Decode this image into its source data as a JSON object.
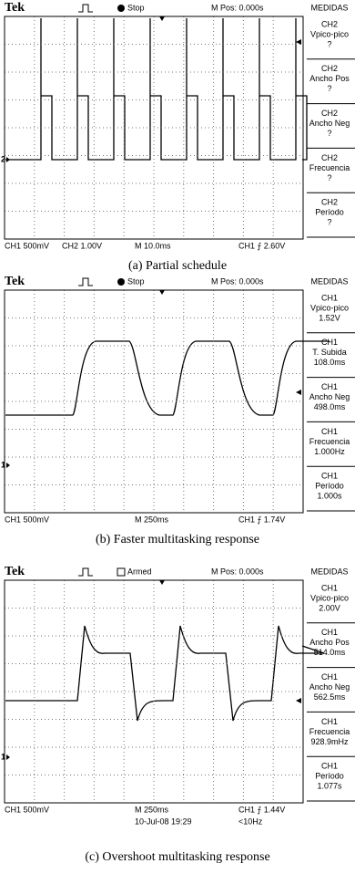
{
  "panels": [
    {
      "header": {
        "brand": "Tek",
        "status": "Stop",
        "position": "M Pos: 0.000s",
        "menu": "MEDIDAS"
      },
      "channel_marker": "2",
      "measurements": [
        {
          "channel": "CH2",
          "name": "Vpico-pico",
          "value": "?"
        },
        {
          "channel": "CH2",
          "name": "Ancho Pos",
          "value": "?"
        },
        {
          "channel": "CH2",
          "name": "Ancho Neg",
          "value": "?"
        },
        {
          "channel": "CH2",
          "name": "Frecuencia",
          "value": "?"
        },
        {
          "channel": "CH2",
          "name": "Período",
          "value": "?"
        }
      ],
      "footer": [
        "CH1 500mV",
        "CH2 1.00V",
        "M 10.0ms",
        "CH1 ⨍ 2.60V"
      ],
      "caption": "(a) Partial schedule"
    },
    {
      "header": {
        "brand": "Tek",
        "status": "Stop",
        "position": "M Pos: 0.000s",
        "menu": "MEDIDAS"
      },
      "channel_marker": "1",
      "measurements": [
        {
          "channel": "CH1",
          "name": "Vpico-pico",
          "value": "1.52V"
        },
        {
          "channel": "CH1",
          "name": "T. Subida",
          "value": "108.0ms"
        },
        {
          "channel": "CH1",
          "name": "Ancho Neg",
          "value": "498.0ms"
        },
        {
          "channel": "CH1",
          "name": "Frecuencia",
          "value": "1.000Hz"
        },
        {
          "channel": "CH1",
          "name": "Período",
          "value": "1.000s"
        }
      ],
      "footer": [
        "CH1 500mV",
        "M 250ms",
        "CH1 ⨍ 1.74V"
      ],
      "caption": "(b) Faster multitasking response"
    },
    {
      "header": {
        "brand": "Tek",
        "status": "Armed",
        "position": "M Pos: 0.000s",
        "menu": "MEDIDAS"
      },
      "channel_marker": "1",
      "measurements": [
        {
          "channel": "CH1",
          "name": "Vpico-pico",
          "value": "2.00V"
        },
        {
          "channel": "CH1",
          "name": "Ancho Pos",
          "value": "514.0ms"
        },
        {
          "channel": "CH1",
          "name": "Ancho Neg",
          "value": "562.5ms"
        },
        {
          "channel": "CH1",
          "name": "Frecuencia",
          "value": "928.9mHz"
        },
        {
          "channel": "CH1",
          "name": "Período",
          "value": "1.077s"
        }
      ],
      "footer": [
        "CH1 500mV",
        "M 250ms",
        "CH1 ⨍ 1.44V"
      ],
      "footer_extra": [
        "10-Jul-08 19:29",
        "<10Hz"
      ],
      "caption": "(c) Overshoot multitasking response"
    }
  ]
}
